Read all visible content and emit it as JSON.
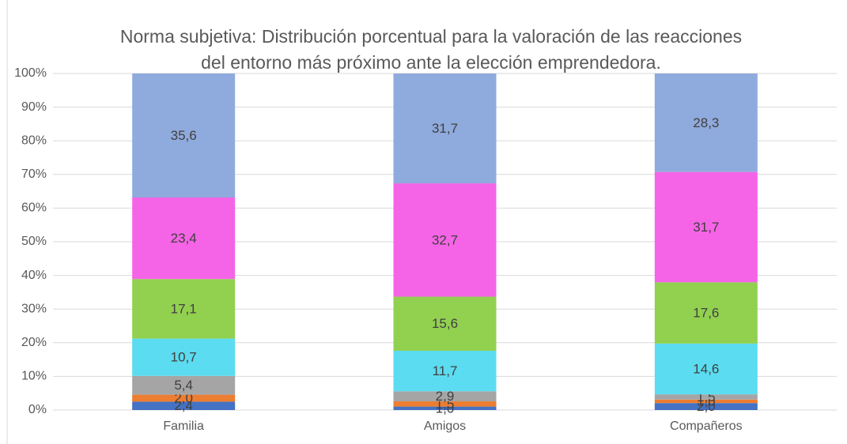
{
  "chart_data": {
    "type": "bar",
    "stack": "percent",
    "title": "Norma subjetiva: Distribución porcentual para la valoración de las reacciones del entorno más próximo ante la elección emprendedora.",
    "categories": [
      "Familia",
      "Amigos",
      "Compañeros"
    ],
    "series": [
      {
        "color": "#4472c4",
        "values": [
          2.4,
          1.0,
          2.0
        ],
        "value_labels": [
          "2,4",
          "1,0",
          "2,0"
        ]
      },
      {
        "color": "#ed7d31",
        "values": [
          2.0,
          1.5,
          1.0
        ],
        "value_labels": [
          "2,0",
          "1,5",
          "1,0"
        ]
      },
      {
        "color": "#a5a5a5",
        "values": [
          5.4,
          2.9,
          1.5
        ],
        "value_labels": [
          "5,4",
          "2,9",
          "1,5"
        ]
      },
      {
        "color": "#5bdcf0",
        "values": [
          10.7,
          11.7,
          14.6
        ],
        "value_labels": [
          "10,7",
          "11,7",
          "14,6"
        ]
      },
      {
        "color": "#92d050",
        "values": [
          17.1,
          15.6,
          17.6
        ],
        "value_labels": [
          "17,1",
          "15,6",
          "17,6"
        ]
      },
      {
        "color": "#f564e6",
        "values": [
          23.4,
          32.7,
          31.7
        ],
        "value_labels": [
          "23,4",
          "32,7",
          "31,7"
        ]
      },
      {
        "color": "#8faadc",
        "values": [
          35.6,
          31.7,
          28.3
        ],
        "value_labels": [
          "35,6",
          "31,7",
          "28,3"
        ]
      }
    ],
    "ylim": [
      0,
      100
    ],
    "yticks": [
      {
        "value": 0,
        "label": "0%"
      },
      {
        "value": 10,
        "label": "10%"
      },
      {
        "value": 20,
        "label": "20%"
      },
      {
        "value": 30,
        "label": "30%"
      },
      {
        "value": 40,
        "label": "40%"
      },
      {
        "value": 50,
        "label": "50%"
      },
      {
        "value": 60,
        "label": "60%"
      },
      {
        "value": 70,
        "label": "70%"
      },
      {
        "value": 80,
        "label": "80%"
      },
      {
        "value": 90,
        "label": "90%"
      },
      {
        "value": 100,
        "label": "100%"
      }
    ],
    "grid": true
  }
}
